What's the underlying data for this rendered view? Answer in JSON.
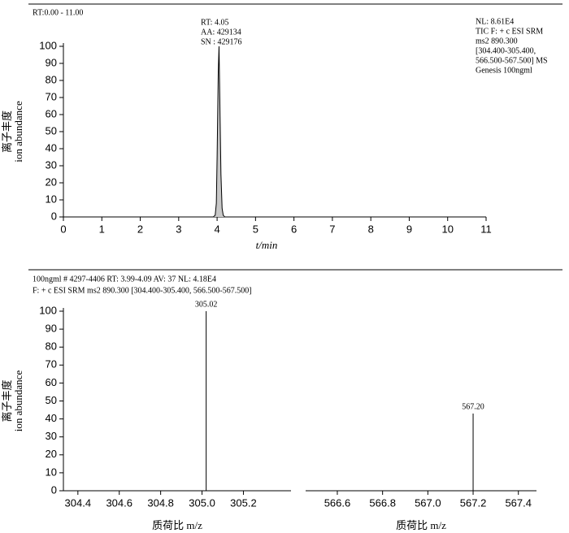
{
  "chart_data": [
    {
      "type": "area",
      "header": "RT:0.00 - 11.00",
      "annotations": [
        "RT: 4.05",
        "AA: 429134",
        "SN : 429176"
      ],
      "info": [
        "NL: 8.61E4",
        "TIC F: + c ESI SRM",
        "ms2 890.300",
        "[304.400-305.400,",
        "566.500-567.500] MS",
        " Genesis 100ngml"
      ],
      "ylabel": [
        "离子丰度",
        "ion abundance"
      ],
      "xlabel": "t/min",
      "x": [
        3.9,
        3.95,
        3.98,
        4.0,
        4.03,
        4.05,
        4.07,
        4.1,
        4.13,
        4.16,
        4.2
      ],
      "values": [
        0,
        1,
        8,
        35,
        85,
        100,
        70,
        25,
        5,
        1,
        0
      ],
      "color": "#c8c8c8",
      "xlim": [
        0,
        11
      ],
      "xticks": [
        0,
        1,
        2,
        3,
        4,
        5,
        6,
        7,
        8,
        9,
        10,
        11
      ],
      "ylim": [
        0,
        100
      ],
      "yticks": [
        0,
        10,
        20,
        30,
        40,
        50,
        60,
        70,
        80,
        90,
        100
      ]
    },
    {
      "type": "stick",
      "header": [
        "100ngml    # 4297-4406      RT: 3.99-4.09      AV:  37   NL:  4.18E4",
        "F: + c ESI SRM ms2 890.300 [304.400-305.400, 566.500-567.500]"
      ],
      "ylabel": [
        "离子丰度",
        "ion abundance"
      ],
      "ylim": [
        0,
        100
      ],
      "yticks": [
        0,
        10,
        20,
        30,
        40,
        50,
        60,
        70,
        80,
        90,
        100
      ],
      "panels": [
        {
          "xlabel": "质荷比 m/z",
          "x": [
            305.02
          ],
          "values": [
            100
          ],
          "peak_labels": [
            "305.02"
          ],
          "xlim": [
            304.33,
            305.43
          ],
          "xticks": [
            304.4,
            304.6,
            304.8,
            {
              "value": 305.0,
              "label": "305.0"
            },
            305.2
          ]
        },
        {
          "xlabel": "质荷比 m/z",
          "x": [
            567.2
          ],
          "values": [
            43
          ],
          "peak_labels": [
            "567.20"
          ],
          "xlim": [
            566.46,
            567.48
          ],
          "xticks": [
            566.6,
            566.8,
            {
              "value": 567.0,
              "label": "567.0"
            },
            567.2,
            567.4
          ]
        }
      ]
    }
  ]
}
